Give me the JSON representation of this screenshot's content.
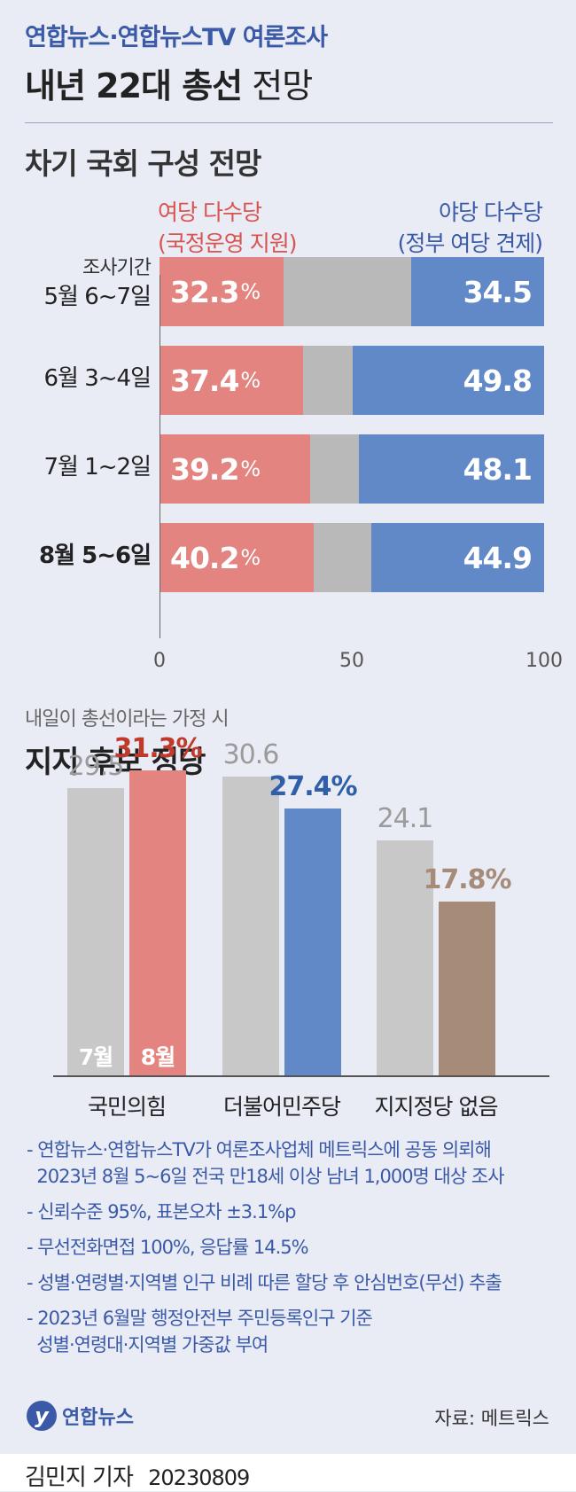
{
  "header": {
    "subtitle": "연합뉴스·연합뉴스TV 여론조사",
    "title_bold": "내년 22대 총선",
    "title_light": "전망"
  },
  "section1": {
    "title": "차기 국회 구성 전망",
    "ruling_label_1": "여당 다수당",
    "ruling_label_2": "(국정운영 지원)",
    "opp_label_1": "야당 다수당",
    "opp_label_2": "(정부 여당 견제)",
    "survey_period_label": "조사기간"
  },
  "section2": {
    "subtitle": "내일이 총선이라는 가정 시",
    "title": "지지 후보 정당",
    "month_labels": [
      "7월",
      "8월"
    ]
  },
  "notes": [
    "- 연합뉴스·연합뉴스TV가 여론조사업체 메트릭스에 공동 의뢰해",
    "  2023년 8월 5~6일 전국 만18세 이상 남녀 1,000명 대상 조사",
    "- 신뢰수준 95%, 표본오차 ±3.1%p",
    "- 무선전화면접 100%, 응답률 14.5%",
    "- 성별·연령별·지역별 인구 비례 따른 할당 후 안심번호(무선) 추출",
    "- 2023년 6월말 행정안전부 주민등록인구 기준",
    "  성별·연령대·지역별 가중값 부여"
  ],
  "logo_text": "연합뉴스",
  "source": "자료: 메트릭스",
  "footer": {
    "author": "김민지 기자",
    "date": "20230809"
  },
  "colors": {
    "ruling": "#e38480",
    "opposition": "#6188c7",
    "neutral": "#b9b9b9",
    "july": "#c8c8c8",
    "ppp_aug": "#e38480",
    "dem_aug": "#6188c7",
    "none_aug": "#a68b78"
  },
  "chart_data": [
    {
      "type": "bar",
      "orientation": "horizontal-stacked",
      "categories": [
        "5월 6~7일",
        "6월 3~4일",
        "7월 1~2일",
        "8월 5~6일"
      ],
      "series": [
        {
          "name": "여당 다수당",
          "values": [
            32.3,
            37.4,
            39.2,
            40.2
          ]
        },
        {
          "name": "",
          "values": [
            33.2,
            12.8,
            12.7,
            14.9
          ]
        },
        {
          "name": "야당 다수당",
          "values": [
            34.5,
            49.8,
            48.1,
            44.9
          ]
        }
      ],
      "xlim": [
        0,
        100
      ],
      "xticks": [
        0,
        50,
        100
      ],
      "unit": "%"
    },
    {
      "type": "bar",
      "orientation": "vertical-grouped",
      "categories": [
        "국민의힘",
        "더불어민주당",
        "지지정당 없음"
      ],
      "series": [
        {
          "name": "7월",
          "values": [
            29.5,
            30.6,
            24.1
          ]
        },
        {
          "name": "8월",
          "values": [
            31.3,
            27.4,
            17.8
          ]
        }
      ],
      "unit": "%"
    }
  ]
}
